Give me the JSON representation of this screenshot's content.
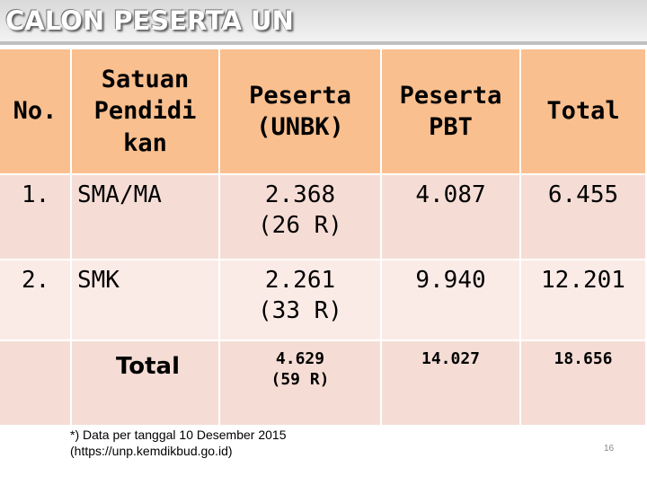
{
  "title": "CALON PESERTA UN",
  "table": {
    "header": [
      [
        "No."
      ],
      [
        "Satuan",
        "Pendidi",
        "kan"
      ],
      [
        "Peserta",
        "(UNBK)"
      ],
      [
        "Peserta",
        "PBT"
      ],
      [
        "Total"
      ]
    ],
    "rows": [
      [
        [
          "1."
        ],
        [
          "SMA/MA"
        ],
        [
          "2.368",
          "(26 R)"
        ],
        [
          "4.087"
        ],
        [
          "6.455"
        ]
      ],
      [
        [
          "2."
        ],
        [
          "SMK"
        ],
        [
          "2.261",
          "(33 R)"
        ],
        [
          "9.940"
        ],
        [
          "12.201"
        ]
      ],
      [
        [],
        [
          "Total"
        ],
        [
          "4.629",
          "(59 R)"
        ],
        [
          "14.027"
        ],
        [
          "18.656"
        ]
      ]
    ]
  },
  "footnote": [
    "*) Data per tanggal  10  Desember 2015",
    "(https://unp.kemdikbud.go.id)"
  ],
  "page_number": "16"
}
